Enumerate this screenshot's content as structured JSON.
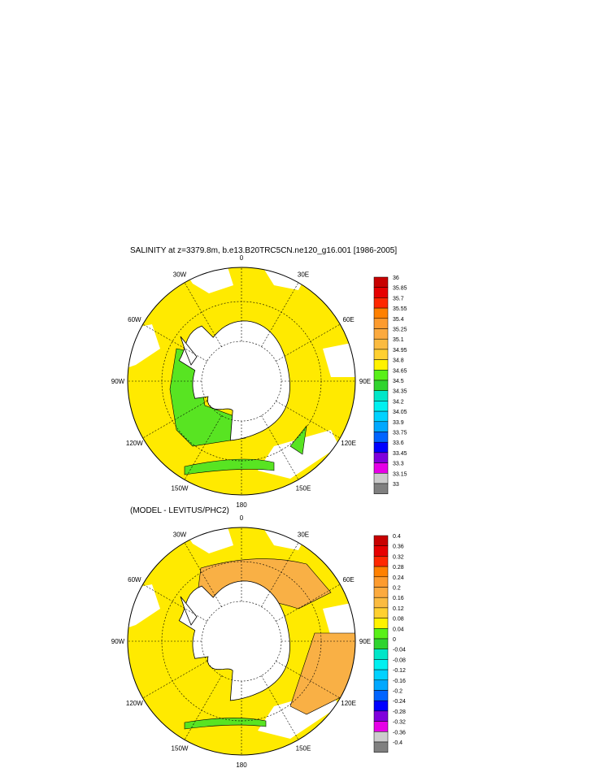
{
  "chart_data": [
    {
      "type": "map",
      "title": "SALINITY at z=3379.8m, b.e13.B20TRC5CN.ne120_g16.001 [1986-2005]",
      "projection": "south polar stereographic",
      "longitude_labels": [
        "0",
        "30E",
        "60E",
        "90E",
        "120E",
        "150E",
        "180",
        "150W",
        "120W",
        "90W",
        "60W",
        "30W"
      ],
      "colorbar": {
        "labels": [
          "36",
          "35.85",
          "35.7",
          "35.55",
          "35.4",
          "35.25",
          "35.1",
          "34.95",
          "34.8",
          "34.65",
          "34.5",
          "34.35",
          "34.2",
          "34.05",
          "33.9",
          "33.75",
          "33.6",
          "33.45",
          "33.3",
          "33.15",
          "33"
        ],
        "colors": [
          "#c80000",
          "#e60000",
          "#ff2800",
          "#ff8000",
          "#fd9b2e",
          "#fcaa3e",
          "#fbbb40",
          "#ffd030",
          "#fff200",
          "#59f018",
          "#2fd42f",
          "#00e6c8",
          "#00f0f0",
          "#00d2ff",
          "#00a8ff",
          "#0064ff",
          "#0000ff",
          "#8000dc",
          "#e600e6",
          "#cccccc",
          "#808080"
        ]
      },
      "dominant_fill": "#ffea00",
      "secondary_fill": "#58e422"
    },
    {
      "type": "map",
      "title": "(MODEL - LEVITUS/PHC2)",
      "projection": "south polar stereographic",
      "longitude_labels": [
        "0",
        "30E",
        "60E",
        "90E",
        "120E",
        "150E",
        "180",
        "150W",
        "120W",
        "90W",
        "60W",
        "30W"
      ],
      "colorbar": {
        "labels": [
          "0.4",
          "0.36",
          "0.32",
          "0.28",
          "0.24",
          "0.2",
          "0.16",
          "0.12",
          "0.08",
          "0.04",
          "0",
          "-0.04",
          "-0.08",
          "-0.12",
          "-0.16",
          "-0.2",
          "-0.24",
          "-0.28",
          "-0.32",
          "-0.36",
          "-0.4"
        ],
        "colors": [
          "#c80000",
          "#e60000",
          "#ff2800",
          "#ff8000",
          "#fd9b2e",
          "#fcaa3e",
          "#fbbb40",
          "#ffd030",
          "#fff200",
          "#59f018",
          "#2fd42f",
          "#00e6c8",
          "#00f0f0",
          "#00d2ff",
          "#00a8ff",
          "#0064ff",
          "#0000ff",
          "#8000dc",
          "#e600e6",
          "#cccccc",
          "#808080"
        ]
      },
      "dominant_fill": "#ffea00",
      "secondary_fill": "#f9b045"
    }
  ]
}
